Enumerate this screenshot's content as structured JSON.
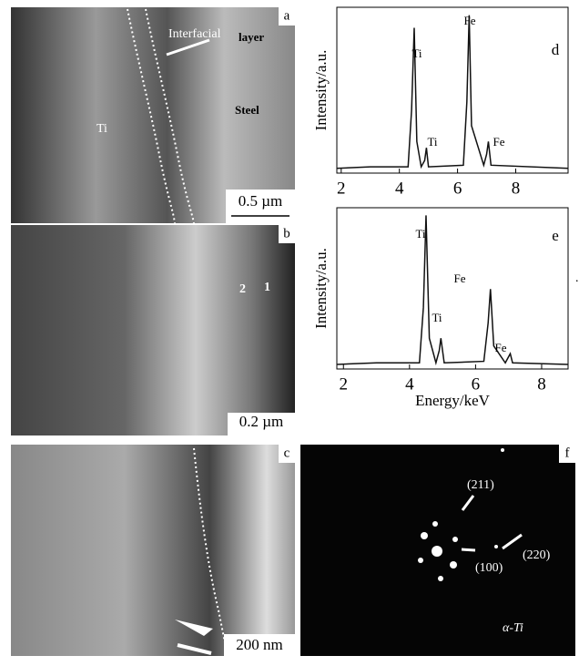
{
  "panels": {
    "a": {
      "label": "a",
      "interfacial": "Interfacial",
      "layer": "layer",
      "ti": "Ti",
      "steel": "Steel",
      "scale": "0.5 µm"
    },
    "b": {
      "label": "b",
      "point1": "1",
      "point2": "2",
      "scale": "0.2 µm",
      "dot": "."
    },
    "c": {
      "label": "c",
      "scale": "200 nm"
    },
    "f": {
      "label": "f",
      "r211": "(211)",
      "r220": "(220)",
      "r100": "(100)",
      "phase": "α-Ti"
    }
  },
  "chart_data": [
    {
      "type": "line",
      "panel_label": "d",
      "ylabel": "Intensity/a.u.",
      "xlim": [
        1.85,
        9.8
      ],
      "xticks": [
        2,
        4,
        6,
        8
      ],
      "ylim": [
        0,
        105
      ],
      "color": "#111",
      "x": [
        1.85,
        3,
        4.3,
        4.42,
        4.51,
        4.6,
        4.75,
        4.87,
        4.93,
        5.0,
        6.2,
        6.32,
        6.4,
        6.48,
        6.9,
        7.0,
        7.06,
        7.15,
        9.8
      ],
      "values": [
        3,
        4,
        4,
        40,
        92,
        20,
        4,
        8,
        16,
        4,
        5,
        45,
        100,
        30,
        5,
        12,
        20,
        5,
        3
      ],
      "peak_labels": [
        "Ti",
        "Ti",
        "Fe",
        "Fe"
      ]
    },
    {
      "type": "line",
      "panel_label": "e",
      "ylabel": "Intensity/a.u.",
      "xlabel": "Energy/keV",
      "xlim": [
        1.8,
        8.8
      ],
      "xticks": [
        2,
        4,
        6,
        8
      ],
      "ylim": [
        0,
        105
      ],
      "color": "#111",
      "x": [
        1.8,
        3,
        4.3,
        4.42,
        4.5,
        4.6,
        4.8,
        4.9,
        4.95,
        5.05,
        6.25,
        6.38,
        6.45,
        6.55,
        6.9,
        7.0,
        7.05,
        7.12,
        8.8
      ],
      "values": [
        3,
        4,
        4,
        40,
        100,
        20,
        4,
        12,
        20,
        4,
        5,
        30,
        52,
        15,
        4,
        8,
        10,
        4,
        3
      ],
      "peak_labels": [
        "Ti",
        "Ti",
        "Fe",
        "Fe"
      ]
    }
  ]
}
